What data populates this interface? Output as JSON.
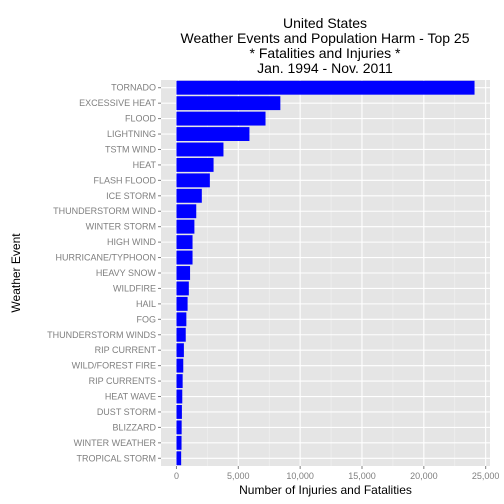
{
  "chart_data": {
    "type": "bar",
    "orientation": "horizontal",
    "title_lines": [
      "United States",
      "Weather Events and Population Harm - Top 25",
      "* Fatalities and Injuries *",
      "Jan. 1994 - Nov. 2011"
    ],
    "xlabel": "Number of Injuries and Fatalities",
    "ylabel": "Weather Event",
    "xlim": [
      0,
      25000
    ],
    "xticks": [
      0,
      5000,
      10000,
      15000,
      20000,
      25000
    ],
    "xtick_labels": [
      "0",
      "5,000",
      "10,000",
      "15,000",
      "20,000",
      "25,000"
    ],
    "grid": true,
    "colors": {
      "bar": "#0000ff",
      "panel": "#e5e5e5",
      "grid_major": "#ffffff",
      "grid_minor": "#f2f2f2"
    },
    "categories": [
      "TORNADO",
      "EXCESSIVE HEAT",
      "FLOOD",
      "LIGHTNING",
      "TSTM WIND",
      "HEAT",
      "FLASH FLOOD",
      "ICE STORM",
      "THUNDERSTORM WIND",
      "WINTER STORM",
      "HIGH WIND",
      "HURRICANE/TYPHOON",
      "HEAVY SNOW",
      "WILDFIRE",
      "HAIL",
      "FOG",
      "THUNDERSTORM WINDS",
      "RIP CURRENT",
      "WILD/FOREST FIRE",
      "RIP CURRENTS",
      "HEAT WAVE",
      "DUST STORM",
      "BLIZZARD",
      "WINTER WEATHER",
      "TROPICAL STORM"
    ],
    "values": [
      24100,
      8400,
      7200,
      5900,
      3800,
      3000,
      2700,
      2050,
      1600,
      1450,
      1300,
      1300,
      1100,
      1000,
      900,
      800,
      750,
      600,
      550,
      500,
      470,
      440,
      420,
      410,
      380
    ]
  }
}
